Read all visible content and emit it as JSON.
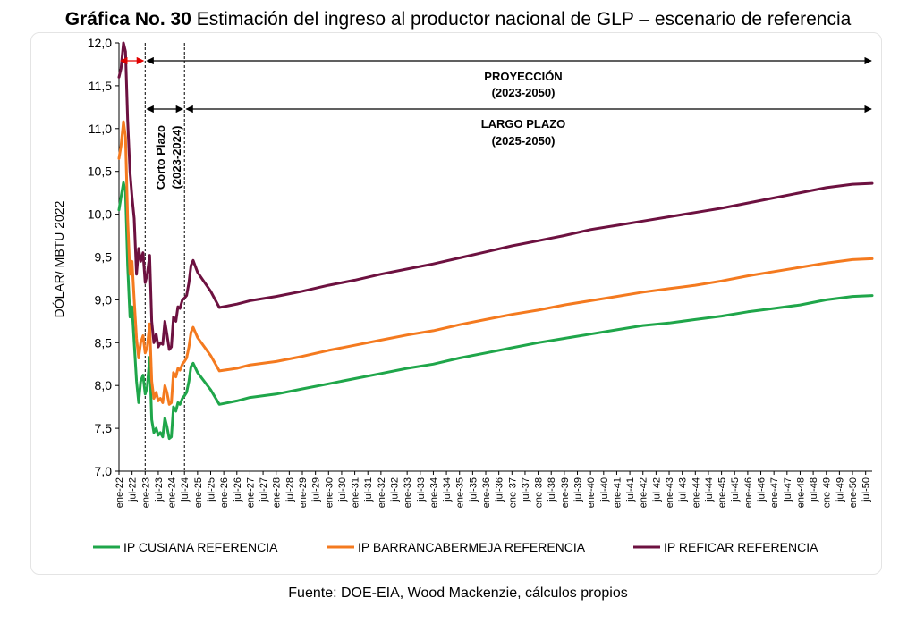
{
  "header": {
    "title_bold": "Gráfica No. 30",
    "title_rest": " Estimación del ingreso al productor nacional de GLP – escenario de referencia"
  },
  "footer": {
    "source": "Fuente: DOE-EIA, Wood Mackenzie, cálculos propios"
  },
  "chart_data": {
    "type": "line",
    "ylabel": "DÓLAR/ MBTU 2022",
    "ylim": [
      7.0,
      12.0
    ],
    "yticks": [
      "7,0",
      "7,5",
      "8,0",
      "8,5",
      "9,0",
      "9,5",
      "10,0",
      "10,5",
      "11,0",
      "11,5",
      "12,0"
    ],
    "xlim": [
      2022.0,
      2050.75
    ],
    "xticks": [
      "ene-22",
      "jul-22",
      "ene-23",
      "jul-23",
      "ene-24",
      "jul-24",
      "ene-25",
      "jul-25",
      "ene-26",
      "jul-26",
      "ene-27",
      "jul-27",
      "ene-28",
      "jul-28",
      "ene-29",
      "jul-29",
      "ene-30",
      "jul-30",
      "ene-31",
      "jul-31",
      "ene-32",
      "jul-32",
      "ene-33",
      "jul-33",
      "ene-34",
      "jul-34",
      "ene-35",
      "jul-35",
      "ene-36",
      "jul-36",
      "ene-37",
      "jul-37",
      "ene-38",
      "jul-38",
      "ene-39",
      "jul-39",
      "ene-40",
      "jul-40",
      "ene-41",
      "jul-41",
      "ene-42",
      "jul-42",
      "ene-43",
      "jul-43",
      "ene-44",
      "jul-44",
      "ene-45",
      "jul-45",
      "ene-46",
      "jul-46",
      "ene-47",
      "jul-47",
      "ene-48",
      "jul-48",
      "ene-49",
      "jul-49",
      "ene-50",
      "jul-50"
    ],
    "grid": false,
    "legend_position": "bottom",
    "annotations": {
      "proyeccion_1": "PROYECCIÓN",
      "proyeccion_2": "(2023-2050)",
      "largo_1": "LARGO PLAZO",
      "largo_2": "(2025-2050)",
      "corto_1": "Corto Plazo",
      "corto_2": "(2023-2024)"
    },
    "vlines": [
      2023.0,
      2024.5
    ],
    "series": [
      {
        "name": "IP CUSIANA REFERENCIA",
        "color": "#1fa64a",
        "points": [
          [
            2022.0,
            10.05
          ],
          [
            2022.08,
            10.2
          ],
          [
            2022.17,
            10.37
          ],
          [
            2022.25,
            10.25
          ],
          [
            2022.33,
            9.4
          ],
          [
            2022.42,
            8.8
          ],
          [
            2022.5,
            8.92
          ],
          [
            2022.58,
            8.5
          ],
          [
            2022.67,
            8.05
          ],
          [
            2022.75,
            7.8
          ],
          [
            2022.83,
            8.05
          ],
          [
            2022.92,
            8.12
          ],
          [
            2023.0,
            7.9
          ],
          [
            2023.08,
            7.98
          ],
          [
            2023.17,
            8.33
          ],
          [
            2023.25,
            7.6
          ],
          [
            2023.33,
            7.45
          ],
          [
            2023.42,
            7.5
          ],
          [
            2023.5,
            7.42
          ],
          [
            2023.58,
            7.45
          ],
          [
            2023.67,
            7.4
          ],
          [
            2023.75,
            7.62
          ],
          [
            2023.83,
            7.52
          ],
          [
            2023.92,
            7.38
          ],
          [
            2024.0,
            7.4
          ],
          [
            2024.08,
            7.75
          ],
          [
            2024.17,
            7.7
          ],
          [
            2024.25,
            7.8
          ],
          [
            2024.33,
            7.78
          ],
          [
            2024.42,
            7.85
          ],
          [
            2024.5,
            7.88
          ],
          [
            2024.58,
            7.92
          ],
          [
            2024.67,
            8.05
          ],
          [
            2024.75,
            8.22
          ],
          [
            2024.83,
            8.26
          ],
          [
            2025.0,
            8.15
          ],
          [
            2025.5,
            7.95
          ],
          [
            2025.83,
            7.78
          ],
          [
            2026.5,
            7.82
          ],
          [
            2027.0,
            7.86
          ],
          [
            2028,
            7.9
          ],
          [
            2029,
            7.96
          ],
          [
            2030,
            8.02
          ],
          [
            2031,
            8.08
          ],
          [
            2032,
            8.14
          ],
          [
            2033,
            8.2
          ],
          [
            2034,
            8.25
          ],
          [
            2035,
            8.32
          ],
          [
            2036,
            8.38
          ],
          [
            2037,
            8.44
          ],
          [
            2038,
            8.5
          ],
          [
            2039,
            8.55
          ],
          [
            2040,
            8.6
          ],
          [
            2041,
            8.65
          ],
          [
            2042,
            8.7
          ],
          [
            2043,
            8.73
          ],
          [
            2044,
            8.77
          ],
          [
            2045,
            8.81
          ],
          [
            2046,
            8.86
          ],
          [
            2047,
            8.9
          ],
          [
            2048,
            8.94
          ],
          [
            2049,
            9.0
          ],
          [
            2050,
            9.04
          ],
          [
            2050.75,
            9.05
          ]
        ]
      },
      {
        "name": "IP BARRANCABERMEJA REFERENCIA",
        "color": "#f47a1f",
        "points": [
          [
            2022.0,
            10.65
          ],
          [
            2022.08,
            10.8
          ],
          [
            2022.17,
            11.08
          ],
          [
            2022.25,
            10.9
          ],
          [
            2022.33,
            9.95
          ],
          [
            2022.42,
            9.3
          ],
          [
            2022.5,
            9.45
          ],
          [
            2022.58,
            9.0
          ],
          [
            2022.67,
            8.55
          ],
          [
            2022.75,
            8.32
          ],
          [
            2022.83,
            8.5
          ],
          [
            2022.92,
            8.58
          ],
          [
            2023.0,
            8.38
          ],
          [
            2023.08,
            8.45
          ],
          [
            2023.17,
            8.72
          ],
          [
            2023.25,
            8.05
          ],
          [
            2023.33,
            7.85
          ],
          [
            2023.42,
            7.92
          ],
          [
            2023.5,
            7.82
          ],
          [
            2023.58,
            7.85
          ],
          [
            2023.67,
            7.8
          ],
          [
            2023.75,
            8.0
          ],
          [
            2023.83,
            7.92
          ],
          [
            2023.92,
            7.78
          ],
          [
            2024.0,
            7.8
          ],
          [
            2024.08,
            8.15
          ],
          [
            2024.17,
            8.1
          ],
          [
            2024.25,
            8.2
          ],
          [
            2024.33,
            8.18
          ],
          [
            2024.42,
            8.25
          ],
          [
            2024.5,
            8.28
          ],
          [
            2024.58,
            8.32
          ],
          [
            2024.67,
            8.45
          ],
          [
            2024.75,
            8.62
          ],
          [
            2024.83,
            8.68
          ],
          [
            2025.0,
            8.56
          ],
          [
            2025.5,
            8.35
          ],
          [
            2025.83,
            8.17
          ],
          [
            2026.5,
            8.2
          ],
          [
            2027.0,
            8.24
          ],
          [
            2028,
            8.28
          ],
          [
            2029,
            8.34
          ],
          [
            2030,
            8.41
          ],
          [
            2031,
            8.47
          ],
          [
            2032,
            8.53
          ],
          [
            2033,
            8.59
          ],
          [
            2034,
            8.64
          ],
          [
            2035,
            8.71
          ],
          [
            2036,
            8.77
          ],
          [
            2037,
            8.83
          ],
          [
            2038,
            8.88
          ],
          [
            2039,
            8.94
          ],
          [
            2040,
            8.99
          ],
          [
            2041,
            9.04
          ],
          [
            2042,
            9.09
          ],
          [
            2043,
            9.13
          ],
          [
            2044,
            9.17
          ],
          [
            2045,
            9.22
          ],
          [
            2046,
            9.28
          ],
          [
            2047,
            9.33
          ],
          [
            2048,
            9.38
          ],
          [
            2049,
            9.43
          ],
          [
            2050,
            9.47
          ],
          [
            2050.75,
            9.48
          ]
        ]
      },
      {
        "name": "IP REFICAR REFERENCIA",
        "color": "#6d1140",
        "points": [
          [
            2022.0,
            11.6
          ],
          [
            2022.08,
            11.7
          ],
          [
            2022.17,
            12.0
          ],
          [
            2022.25,
            11.9
          ],
          [
            2022.33,
            11.1
          ],
          [
            2022.42,
            10.5
          ],
          [
            2022.5,
            10.2
          ],
          [
            2022.58,
            9.95
          ],
          [
            2022.67,
            9.3
          ],
          [
            2022.75,
            9.6
          ],
          [
            2022.83,
            9.45
          ],
          [
            2022.92,
            9.55
          ],
          [
            2023.0,
            9.2
          ],
          [
            2023.08,
            9.3
          ],
          [
            2023.17,
            9.52
          ],
          [
            2023.25,
            8.75
          ],
          [
            2023.33,
            8.5
          ],
          [
            2023.42,
            8.6
          ],
          [
            2023.5,
            8.45
          ],
          [
            2023.58,
            8.5
          ],
          [
            2023.67,
            8.48
          ],
          [
            2023.75,
            8.75
          ],
          [
            2023.83,
            8.6
          ],
          [
            2023.92,
            8.42
          ],
          [
            2024.0,
            8.45
          ],
          [
            2024.08,
            8.8
          ],
          [
            2024.17,
            8.75
          ],
          [
            2024.25,
            8.92
          ],
          [
            2024.33,
            8.9
          ],
          [
            2024.42,
            9.0
          ],
          [
            2024.5,
            9.02
          ],
          [
            2024.58,
            9.05
          ],
          [
            2024.67,
            9.2
          ],
          [
            2024.75,
            9.4
          ],
          [
            2024.83,
            9.46
          ],
          [
            2025.0,
            9.32
          ],
          [
            2025.5,
            9.1
          ],
          [
            2025.83,
            8.91
          ],
          [
            2026.5,
            8.95
          ],
          [
            2027.0,
            8.99
          ],
          [
            2028,
            9.04
          ],
          [
            2029,
            9.1
          ],
          [
            2030,
            9.17
          ],
          [
            2031,
            9.23
          ],
          [
            2032,
            9.3
          ],
          [
            2033,
            9.36
          ],
          [
            2034,
            9.42
          ],
          [
            2035,
            9.49
          ],
          [
            2036,
            9.56
          ],
          [
            2037,
            9.63
          ],
          [
            2038,
            9.69
          ],
          [
            2039,
            9.75
          ],
          [
            2040,
            9.82
          ],
          [
            2041,
            9.87
          ],
          [
            2042,
            9.92
          ],
          [
            2043,
            9.97
          ],
          [
            2044,
            10.02
          ],
          [
            2045,
            10.07
          ],
          [
            2046,
            10.13
          ],
          [
            2047,
            10.19
          ],
          [
            2048,
            10.25
          ],
          [
            2049,
            10.31
          ],
          [
            2050,
            10.35
          ],
          [
            2050.75,
            10.36
          ]
        ]
      }
    ]
  }
}
